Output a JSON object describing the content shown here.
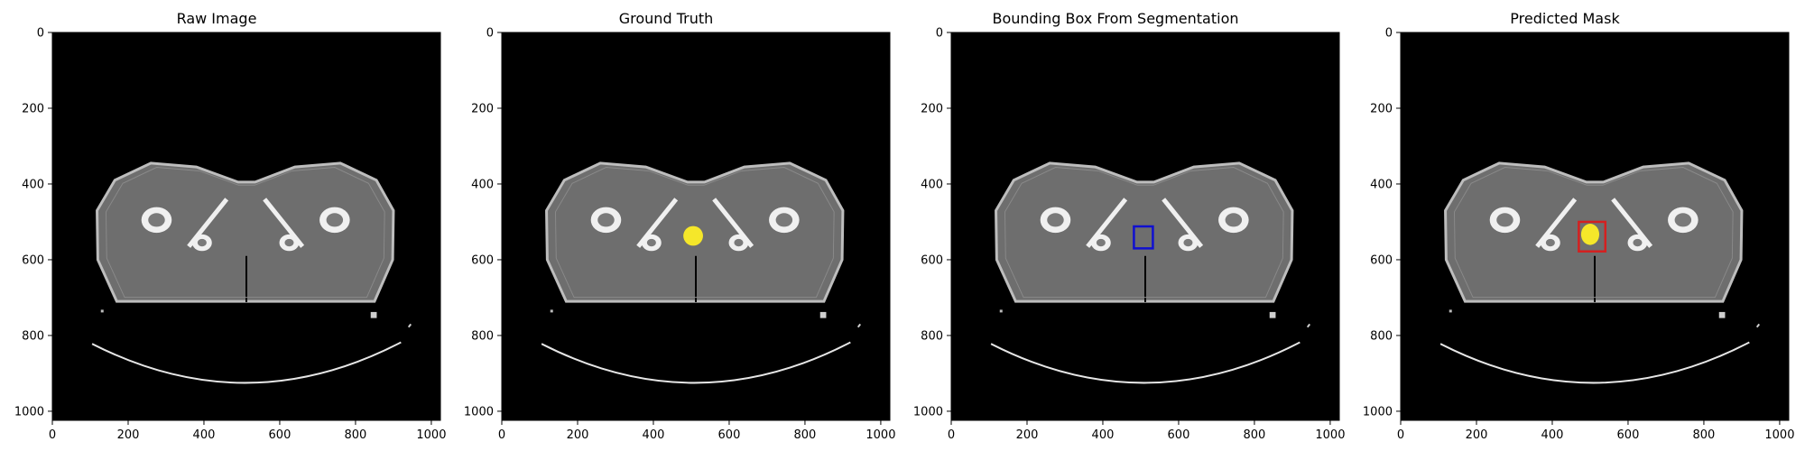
{
  "figure": {
    "panels": [
      {
        "title": "Raw Image",
        "overlay": "none"
      },
      {
        "title": "Ground Truth",
        "overlay": "mask"
      },
      {
        "title": "Bounding Box From Segmentation",
        "overlay": "box"
      },
      {
        "title": "Predicted Mask",
        "overlay": "mask-box"
      }
    ],
    "axes": {
      "x_ticks": [
        0,
        200,
        400,
        600,
        800,
        1000
      ],
      "y_ticks": [
        0,
        200,
        400,
        600,
        800,
        1000
      ],
      "x_range": [
        0,
        1024
      ],
      "y_range": [
        0,
        1024
      ]
    },
    "colors": {
      "background": "#000000",
      "tissue": "#6e6e6e",
      "skin": "#bdbdbd",
      "bone": "#f0f0f0",
      "mask": "#f5e72a",
      "gt_box": "#1010d0",
      "pred_box": "#d42020"
    },
    "annotations": {
      "gt_mask_center": [
        505,
        537
      ],
      "gt_mask_radius": 26,
      "gt_box": {
        "x0": 482,
        "y0": 512,
        "x1": 532,
        "y1": 570
      },
      "pred_mask_center": [
        500,
        533
      ],
      "pred_box": {
        "x0": 470,
        "y0": 500,
        "x1": 540,
        "y1": 578
      }
    }
  }
}
